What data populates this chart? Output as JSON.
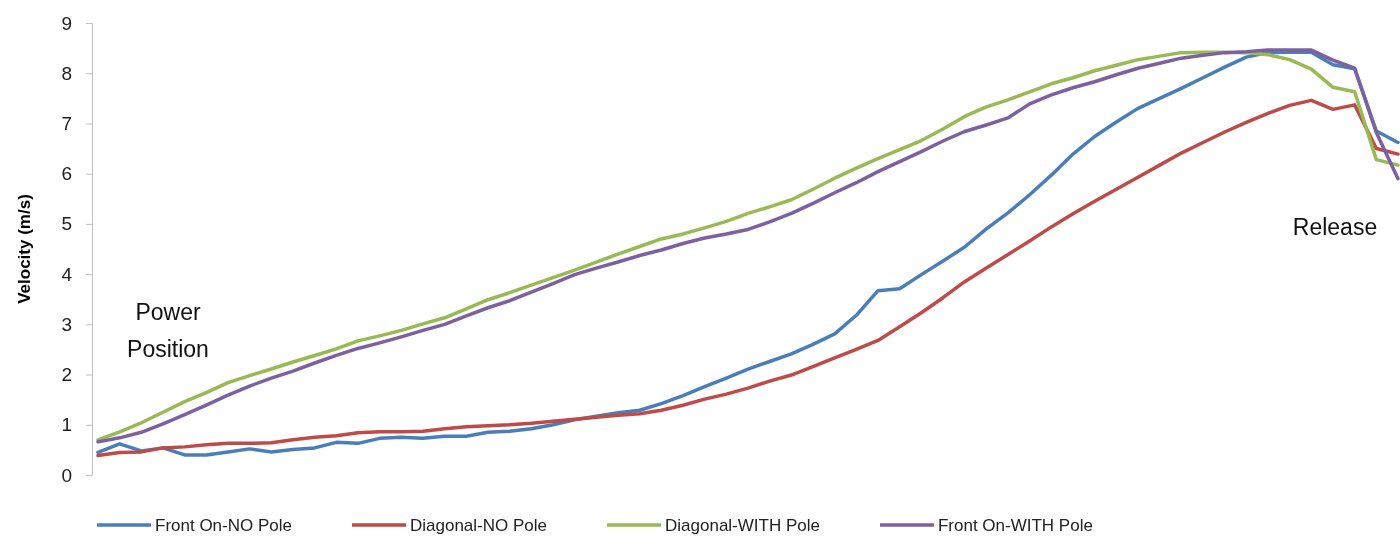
{
  "chart_data": {
    "type": "line",
    "ylabel": "Velocity (m/s)",
    "ylim": [
      0,
      9
    ],
    "yticks": [
      0,
      1,
      2,
      3,
      4,
      5,
      6,
      7,
      8,
      9
    ],
    "grid": false,
    "legend": "bottom",
    "marker": "none",
    "line_style": "solid",
    "annotations": [
      "Power Position",
      "Release"
    ],
    "categories": [
      null,
      null,
      null,
      null,
      null,
      null,
      null,
      null,
      null,
      null,
      null,
      null,
      null,
      null,
      null,
      null,
      null,
      null,
      null,
      null,
      null,
      null,
      null,
      null,
      null,
      null,
      null,
      null,
      null,
      null,
      null,
      null,
      null,
      null,
      null,
      null,
      null,
      null,
      null,
      null,
      null,
      null,
      null,
      null,
      null,
      null,
      null,
      null,
      null,
      null,
      null,
      null,
      null,
      null,
      null,
      null,
      null,
      null,
      null,
      null,
      null
    ],
    "series": [
      {
        "name": "Front On-NO Pole",
        "color": "#4a7ebb",
        "values": [
          0.45,
          0.62,
          0.48,
          0.54,
          0.4,
          0.4,
          0.46,
          0.52,
          0.46,
          0.51,
          0.54,
          0.65,
          0.63,
          0.73,
          0.75,
          0.73,
          0.77,
          0.77,
          0.85,
          0.87,
          0.92,
          1.0,
          1.1,
          1.17,
          1.24,
          1.29,
          1.42,
          1.58,
          1.76,
          1.93,
          2.11,
          2.26,
          2.41,
          2.6,
          2.81,
          3.18,
          3.67,
          3.71,
          3.99,
          4.26,
          4.54,
          4.9,
          5.22,
          5.58,
          5.97,
          6.39,
          6.74,
          7.03,
          7.3,
          7.5,
          7.7,
          7.91,
          8.12,
          8.32,
          8.41,
          8.42,
          8.42,
          8.17,
          8.09,
          6.85,
          6.62
        ]
      },
      {
        "name": "Diagonal-NO Pole",
        "color": "#be4b48",
        "values": [
          0.39,
          0.45,
          0.46,
          0.54,
          0.56,
          0.6,
          0.63,
          0.63,
          0.64,
          0.7,
          0.75,
          0.78,
          0.84,
          0.86,
          0.86,
          0.87,
          0.92,
          0.96,
          0.98,
          1.0,
          1.03,
          1.07,
          1.11,
          1.15,
          1.19,
          1.22,
          1.29,
          1.39,
          1.51,
          1.61,
          1.73,
          1.87,
          1.99,
          2.16,
          2.33,
          2.5,
          2.68,
          2.95,
          3.23,
          3.53,
          3.85,
          4.12,
          4.39,
          4.66,
          4.94,
          5.2,
          5.45,
          5.69,
          5.93,
          6.17,
          6.41,
          6.62,
          6.83,
          7.02,
          7.2,
          7.36,
          7.46,
          7.28,
          7.37,
          6.5,
          6.39
        ]
      },
      {
        "name": "Diagonal-WITH Pole",
        "color": "#98b954",
        "values": [
          0.7,
          0.86,
          1.04,
          1.25,
          1.46,
          1.64,
          1.84,
          1.98,
          2.11,
          2.25,
          2.38,
          2.51,
          2.67,
          2.77,
          2.88,
          3.01,
          3.13,
          3.31,
          3.49,
          3.63,
          3.78,
          3.93,
          4.08,
          4.24,
          4.4,
          4.55,
          4.7,
          4.8,
          4.92,
          5.05,
          5.21,
          5.34,
          5.48,
          5.69,
          5.91,
          6.11,
          6.3,
          6.48,
          6.66,
          6.89,
          7.14,
          7.33,
          7.47,
          7.63,
          7.79,
          7.91,
          8.05,
          8.16,
          8.27,
          8.34,
          8.41,
          8.42,
          8.42,
          8.41,
          8.37,
          8.27,
          8.08,
          7.72,
          7.63,
          6.28,
          6.17
        ]
      },
      {
        "name": "Front On-WITH Pole",
        "color": "#7d60a0",
        "values": [
          0.66,
          0.74,
          0.85,
          1.02,
          1.2,
          1.39,
          1.59,
          1.77,
          1.93,
          2.07,
          2.23,
          2.38,
          2.52,
          2.63,
          2.75,
          2.88,
          3.0,
          3.17,
          3.33,
          3.47,
          3.64,
          3.81,
          3.99,
          4.12,
          4.24,
          4.37,
          4.48,
          4.61,
          4.72,
          4.8,
          4.89,
          5.04,
          5.21,
          5.41,
          5.62,
          5.82,
          6.04,
          6.24,
          6.44,
          6.65,
          6.84,
          6.97,
          7.11,
          7.39,
          7.57,
          7.71,
          7.83,
          7.97,
          8.1,
          8.2,
          8.3,
          8.36,
          8.41,
          8.43,
          8.46,
          8.46,
          8.46,
          8.26,
          8.1,
          6.82,
          5.9
        ]
      }
    ]
  }
}
